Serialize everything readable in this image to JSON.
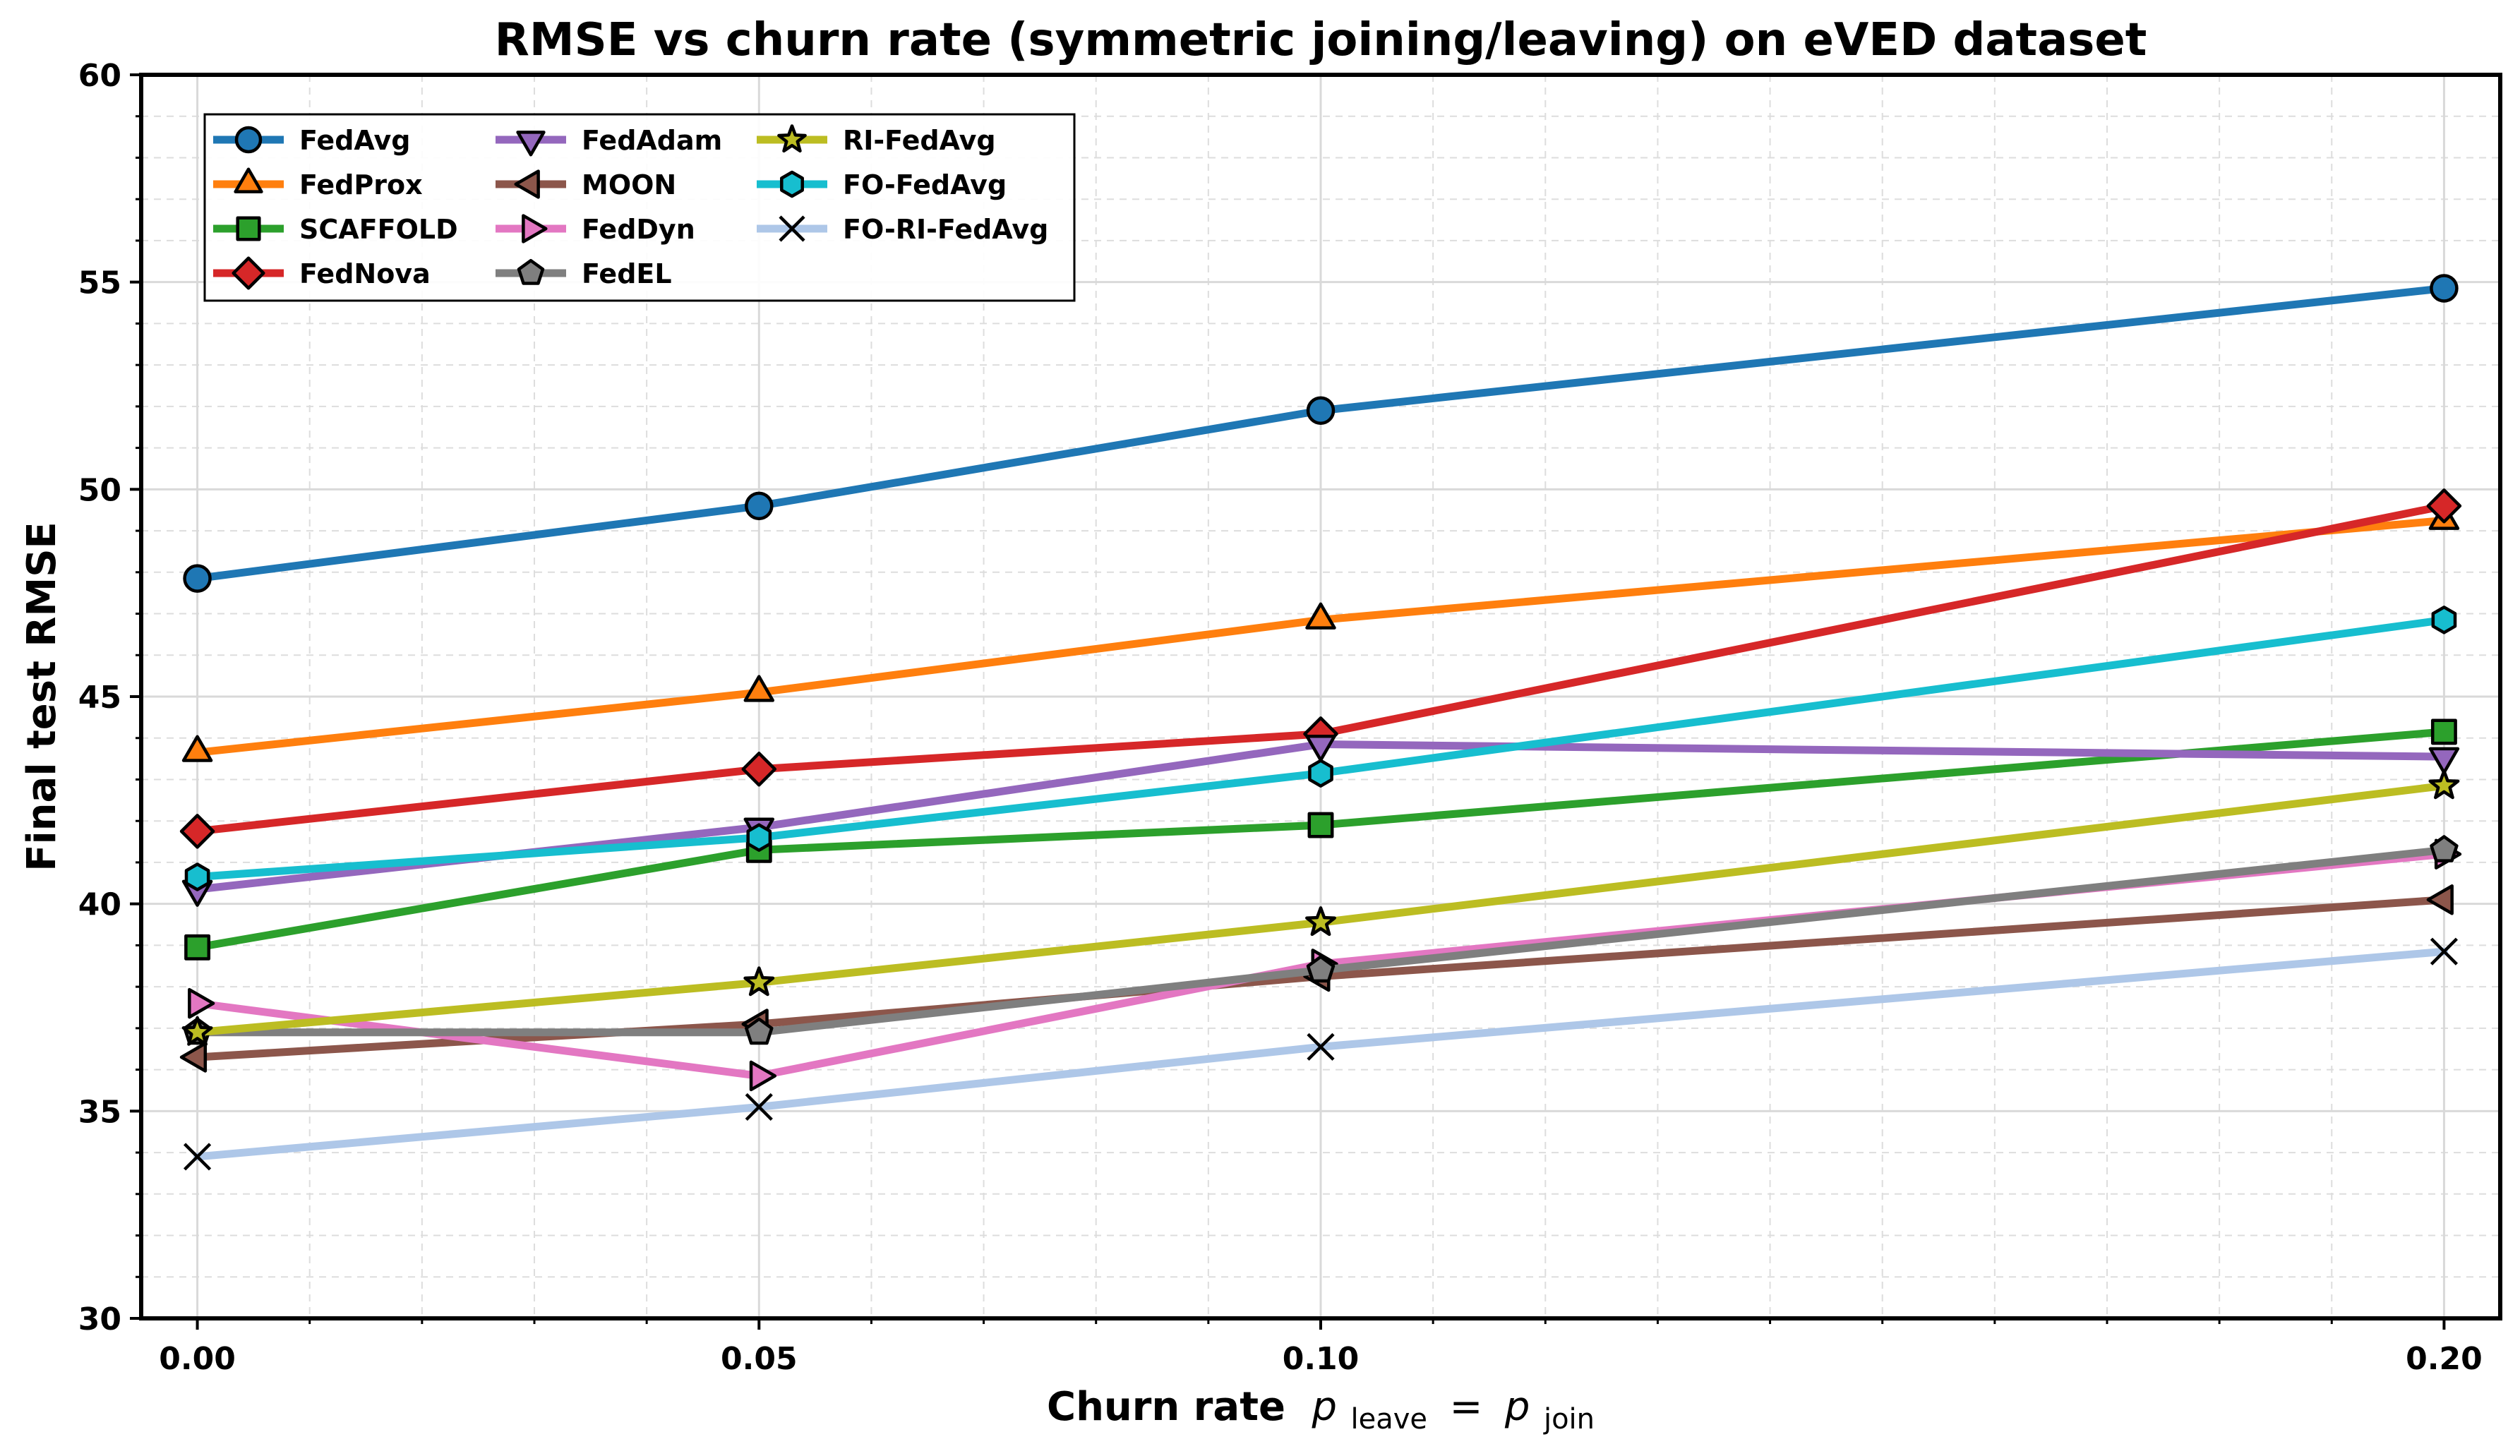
{
  "chart_data": {
    "type": "line",
    "title": "RMSE vs churn rate (symmetric joining/leaving) on eVED dataset",
    "xlabel": "Churn rate",
    "xlabel_math": {
      "p": "p",
      "leave_sub": "leave",
      "eq": "=",
      "join_sub": "join"
    },
    "ylabel": "Final test RMSE",
    "x": [
      0.0,
      0.05,
      0.1,
      0.2
    ],
    "x_tick_labels": [
      "0.00",
      "0.05",
      "0.10",
      "0.20"
    ],
    "xlim": [
      -0.005,
      0.205
    ],
    "ylim": [
      30,
      60
    ],
    "y_ticks": [
      30,
      35,
      40,
      45,
      50,
      55,
      60
    ],
    "y_tick_labels": [
      "30",
      "35",
      "40",
      "45",
      "50",
      "55",
      "60"
    ],
    "grid": true,
    "legend_position": "top-left",
    "legend_columns": 3,
    "series": [
      {
        "name": "FedAvg",
        "values": [
          47.85,
          49.6,
          51.9,
          54.85
        ],
        "color": "#1f77b4",
        "marker": "circle"
      },
      {
        "name": "FedProx",
        "values": [
          43.65,
          45.1,
          46.85,
          49.25
        ],
        "color": "#ff7f0e",
        "marker": "triangle-up"
      },
      {
        "name": "SCAFFOLD",
        "values": [
          38.95,
          41.3,
          41.9,
          44.15
        ],
        "color": "#2ca02c",
        "marker": "square"
      },
      {
        "name": "FedNova",
        "values": [
          41.75,
          43.25,
          44.1,
          49.6
        ],
        "color": "#d62728",
        "marker": "diamond"
      },
      {
        "name": "FedAdam",
        "values": [
          40.35,
          41.85,
          43.85,
          43.55
        ],
        "color": "#9467bd",
        "marker": "triangle-down"
      },
      {
        "name": "MOON",
        "values": [
          36.3,
          37.1,
          38.25,
          40.1
        ],
        "color": "#8c564b",
        "marker": "triangle-left"
      },
      {
        "name": "FedDyn",
        "values": [
          37.6,
          35.85,
          38.55,
          41.2
        ],
        "color": "#e377c2",
        "marker": "triangle-right"
      },
      {
        "name": "FedEL",
        "values": [
          36.9,
          36.9,
          38.4,
          41.3
        ],
        "color": "#7f7f7f",
        "marker": "pentagon"
      },
      {
        "name": "RI-FedAvg",
        "values": [
          36.9,
          38.1,
          39.55,
          42.85
        ],
        "color": "#bcbd22",
        "marker": "star"
      },
      {
        "name": "FO-FedAvg",
        "values": [
          40.65,
          41.6,
          43.15,
          46.85
        ],
        "color": "#17becf",
        "marker": "hexagon"
      },
      {
        "name": "FO-RI-FedAvg",
        "values": [
          33.9,
          35.1,
          36.55,
          38.85
        ],
        "color": "#aec7e8",
        "marker": "x"
      }
    ]
  }
}
